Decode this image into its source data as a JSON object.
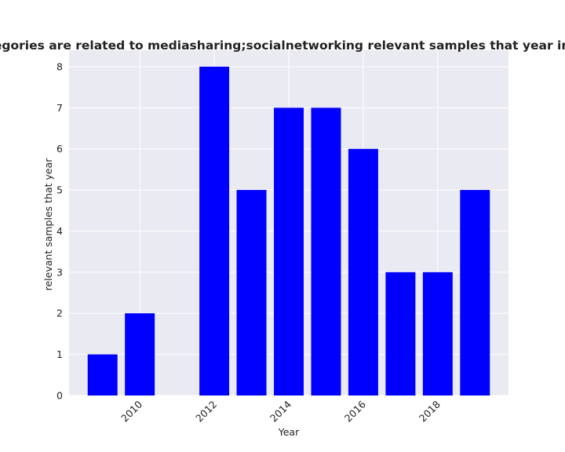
{
  "chart_data": {
    "type": "bar",
    "title": "How many categories are related to mediasharing;socialnetworking relevant samples that year in privacy policies",
    "xlabel": "Year",
    "ylabel": "relevant samples that year",
    "x": [
      2009,
      2010,
      2012,
      2013,
      2014,
      2015,
      2016,
      2017,
      2018,
      2019
    ],
    "values": [
      1,
      2,
      8,
      5,
      7,
      7,
      6,
      3,
      3,
      5
    ],
    "xticks": [
      "2010",
      "2012",
      "2014",
      "2016",
      "2018"
    ],
    "yticks": [
      "0",
      "1",
      "2",
      "3",
      "4",
      "5",
      "6",
      "7",
      "8"
    ],
    "xlim": [
      2008.1,
      2019.9
    ],
    "ylim": [
      0,
      8.4
    ],
    "grid": true,
    "bar_color": "#0000ff",
    "background_color": "#eaeaf2"
  }
}
